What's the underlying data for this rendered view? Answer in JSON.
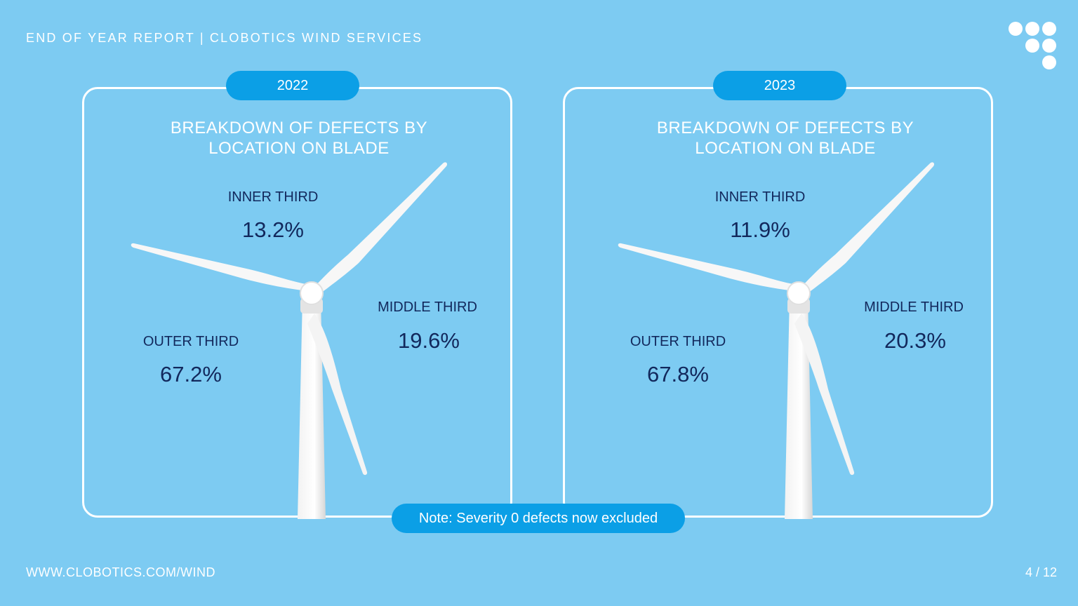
{
  "header": {
    "title": "END OF YEAR REPORT | CLOBOTICS WIND SERVICES"
  },
  "footer": {
    "url": "WWW.CLOBOTICS.COM/WIND",
    "page": "4 / 12"
  },
  "note": "Note: Severity 0 defects now excluded",
  "colors": {
    "background": "#7dcbf2",
    "accent": "#0b9fe6",
    "text_dark": "#12285c",
    "white": "#ffffff"
  },
  "chart_data": [
    {
      "type": "table",
      "year": "2022",
      "title_line1": "BREAKDOWN OF DEFECTS BY",
      "title_line2": "LOCATION ON BLADE",
      "categories": [
        "INNER THIRD",
        "MIDDLE THIRD",
        "OUTER THIRD"
      ],
      "values": [
        13.2,
        19.6,
        67.2
      ],
      "value_labels": [
        "13.2%",
        "19.6%",
        "67.2%"
      ]
    },
    {
      "type": "table",
      "year": "2023",
      "title_line1": "BREAKDOWN OF DEFECTS BY",
      "title_line2": "LOCATION ON BLADE",
      "categories": [
        "INNER THIRD",
        "MIDDLE THIRD",
        "OUTER THIRD"
      ],
      "values": [
        11.9,
        20.3,
        67.8
      ],
      "value_labels": [
        "11.9%",
        "20.3%",
        "67.8%"
      ]
    }
  ]
}
